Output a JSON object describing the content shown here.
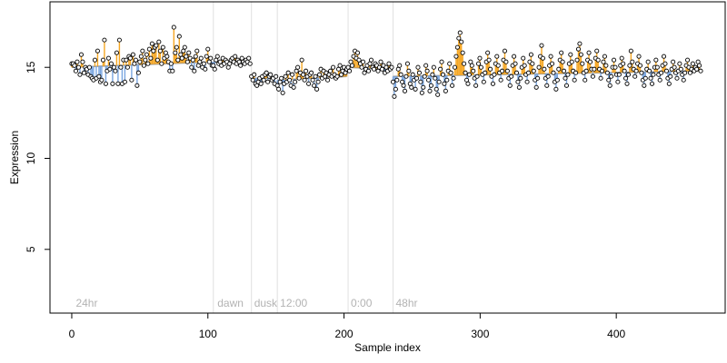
{
  "chart_data": {
    "type": "scatter",
    "title": "",
    "xlabel": "Sample index",
    "ylabel": "Expression",
    "xlim": [
      -16,
      480
    ],
    "ylim": [
      1.5,
      18.6
    ],
    "xticks": [
      0,
      100,
      200,
      300,
      400
    ],
    "yticks": [
      5,
      10,
      15
    ],
    "grid": false,
    "legend": "none",
    "colors": {
      "point_fill": "#ffffff",
      "point_stroke": "#000000",
      "above_trend": "#f5a623",
      "below_trend": "#7aa6e0",
      "trend": "#999999",
      "phase_line": "#e0e0e0",
      "phase_text": "#b3b3b3"
    },
    "phase_boundaries": [
      104,
      132,
      151,
      203,
      236
    ],
    "phase_labels": [
      {
        "x": 3,
        "label": "24hr"
      },
      {
        "x": 107,
        "label": "dawn"
      },
      {
        "x": 134,
        "label": "dusk"
      },
      {
        "x": 153,
        "label": "12:00"
      },
      {
        "x": 205,
        "label": "0:00"
      },
      {
        "x": 238,
        "label": "48hr"
      }
    ],
    "segments": [
      {
        "x_start": 0,
        "x_end": 103,
        "trend_start": 15.0,
        "trend_end": 15.3,
        "points": [
          15.2,
          15.2,
          15.1,
          14.8,
          15.3,
          15.0,
          14.6,
          15.7,
          15.3,
          14.7,
          15.0,
          14.9,
          14.6,
          15.0,
          14.5,
          14.4,
          14.3,
          15.4,
          14.4,
          15.9,
          14.5,
          14.2,
          14.3,
          15.4,
          16.5,
          14.1,
          14.8,
          15.5,
          14.9,
          15.2,
          14.1,
          15.0,
          14.8,
          15.8,
          14.1,
          16.5,
          15.0,
          14.1,
          15.4,
          14.2,
          15.4,
          15.0,
          15.6,
          15.5,
          14.3,
          15.7,
          15.2,
          15.4,
          14.0,
          14.7,
          15.3,
          15.6,
          15.9,
          15.1,
          15.4,
          15.7,
          15.2,
          16.0,
          15.5,
          16.3,
          15.9,
          16.1,
          16.2,
          15.4,
          16.4,
          15.9,
          15.2,
          16.1,
          15.5,
          15.8,
          15.6,
          15.3,
          14.8,
          15.2,
          14.8,
          17.2,
          15.8,
          16.1,
          15.4,
          16.7,
          15.7,
          15.5,
          15.9,
          16.1,
          15.6,
          15.3,
          15.8,
          15.5,
          15.0,
          15.4,
          14.8,
          15.6,
          15.9,
          15.1,
          15.3,
          15.5,
          15.0,
          15.2,
          14.9,
          15.6,
          16.0,
          15.3,
          15.5,
          15.1
        ]
      },
      {
        "x_start": 104,
        "x_end": 131,
        "trend_start": 15.3,
        "trend_end": 15.2,
        "points": [
          15.1,
          14.9,
          15.4,
          15.6,
          15.2,
          15.3,
          15.1,
          15.5,
          15.2,
          15.4,
          15.3,
          15.0,
          15.2,
          15.4,
          15.5,
          15.3,
          15.6,
          15.2,
          15.4,
          15.3,
          15.1,
          15.5,
          15.3,
          15.2,
          15.4,
          15.3,
          15.5,
          15.2
        ]
      },
      {
        "x_start": 132,
        "x_end": 150,
        "trend_start": 14.4,
        "trend_end": 14.4,
        "points": [
          14.5,
          14.3,
          14.6,
          14.1,
          14.0,
          14.2,
          14.4,
          14.1,
          14.5,
          14.3,
          14.6,
          14.7,
          14.2,
          14.5,
          14.6,
          14.3,
          14.4,
          14.1,
          14.5
        ]
      },
      {
        "x_start": 151,
        "x_end": 202,
        "trend_start": 14.3,
        "trend_end": 14.5,
        "points": [
          14.0,
          13.8,
          14.2,
          14.4,
          13.6,
          14.1,
          14.5,
          14.2,
          14.7,
          14.3,
          14.0,
          14.6,
          13.9,
          14.2,
          14.8,
          15.0,
          14.4,
          14.7,
          15.4,
          14.6,
          14.3,
          14.8,
          14.5,
          14.1,
          14.6,
          14.7,
          14.3,
          14.0,
          14.5,
          13.8,
          14.2,
          14.6,
          14.9,
          14.4,
          14.8,
          14.5,
          14.7,
          14.3,
          14.6,
          14.8,
          14.5,
          15.0,
          14.6,
          14.4,
          14.5,
          14.9,
          15.1,
          14.6,
          14.8,
          15.0,
          14.7,
          14.9
        ]
      },
      {
        "x_start": 203,
        "x_end": 235,
        "trend_start": 15.0,
        "trend_end": 14.9,
        "points": [
          15.0,
          14.8,
          15.3,
          15.1,
          15.6,
          15.9,
          15.5,
          15.8,
          15.4,
          15.2,
          15.0,
          15.3,
          14.7,
          14.9,
          15.1,
          14.8,
          15.2,
          15.4,
          15.0,
          14.9,
          15.2,
          15.1,
          14.8,
          15.0,
          15.3,
          14.9,
          15.1,
          14.7,
          15.0,
          14.8,
          15.2,
          14.9,
          15.0
        ]
      },
      {
        "x_start": 236,
        "x_end": 462,
        "trend_start": 14.5,
        "trend_end": 14.8,
        "points": [
          14.2,
          13.4,
          13.8,
          14.3,
          14.9,
          15.1,
          14.6,
          14.2,
          14.0,
          13.7,
          14.5,
          15.2,
          14.8,
          14.1,
          13.9,
          14.6,
          14.3,
          13.8,
          14.4,
          15.0,
          14.7,
          14.2,
          13.6,
          13.9,
          14.5,
          15.1,
          14.8,
          14.3,
          13.7,
          14.0,
          14.6,
          15.0,
          14.4,
          13.8,
          13.5,
          14.2,
          14.9,
          15.3,
          14.6,
          14.1,
          13.7,
          14.3,
          14.8,
          15.2,
          14.7,
          14.0,
          14.4,
          15.0,
          15.6,
          16.1,
          16.6,
          16.9,
          16.4,
          15.8,
          15.2,
          14.7,
          14.3,
          14.1,
          14.6,
          15.3,
          15.1,
          14.8,
          14.4,
          14.0,
          14.5,
          15.2,
          15.5,
          15.0,
          14.6,
          14.2,
          14.7,
          15.3,
          15.8,
          15.4,
          14.9,
          14.5,
          14.1,
          14.6,
          15.2,
          15.6,
          15.1,
          14.7,
          14.3,
          14.8,
          15.4,
          15.9,
          15.3,
          14.8,
          14.4,
          14.0,
          14.5,
          15.1,
          15.6,
          15.2,
          14.7,
          14.2,
          13.9,
          14.4,
          15.0,
          15.5,
          15.1,
          14.6,
          14.2,
          14.7,
          15.3,
          15.7,
          15.2,
          14.8,
          14.3,
          13.9,
          14.4,
          15.0,
          15.6,
          16.2,
          15.5,
          14.9,
          14.4,
          14.0,
          14.5,
          15.1,
          15.6,
          15.2,
          14.7,
          14.2,
          13.8,
          14.3,
          14.9,
          15.4,
          15.8,
          15.3,
          14.8,
          14.4,
          14.0,
          14.6,
          15.2,
          15.7,
          15.3,
          14.8,
          14.3,
          14.7,
          15.4,
          16.0,
          16.3,
          15.7,
          15.2,
          14.7,
          14.3,
          14.8,
          15.4,
          15.8,
          15.3,
          14.9,
          14.5,
          14.9,
          15.5,
          15.9,
          15.4,
          14.9,
          14.4,
          14.8,
          15.3,
          15.6,
          15.1,
          14.7,
          14.3,
          14.0,
          14.5,
          15.0,
          15.4,
          15.0,
          14.6,
          14.2,
          14.6,
          15.1,
          15.5,
          15.2,
          14.8,
          14.4,
          14.1,
          14.6,
          15.1,
          15.9,
          15.3,
          14.9,
          14.5,
          14.8,
          15.2,
          15.6,
          15.1,
          14.7,
          14.3,
          14.0,
          14.4,
          14.9,
          15.3,
          14.8,
          14.4,
          14.1,
          14.6,
          15.0,
          15.4,
          15.0,
          14.6,
          14.3,
          14.7,
          15.1,
          15.6,
          15.2,
          14.8,
          14.4,
          14.1,
          14.5,
          14.9,
          15.3,
          15.0,
          14.7,
          14.4,
          14.8,
          15.2,
          14.9,
          14.6,
          14.3,
          14.7,
          15.1,
          15.4,
          15.0,
          14.7,
          14.9,
          15.2,
          14.8,
          15.0,
          14.9,
          15.3,
          15.1,
          14.8
        ]
      }
    ]
  }
}
